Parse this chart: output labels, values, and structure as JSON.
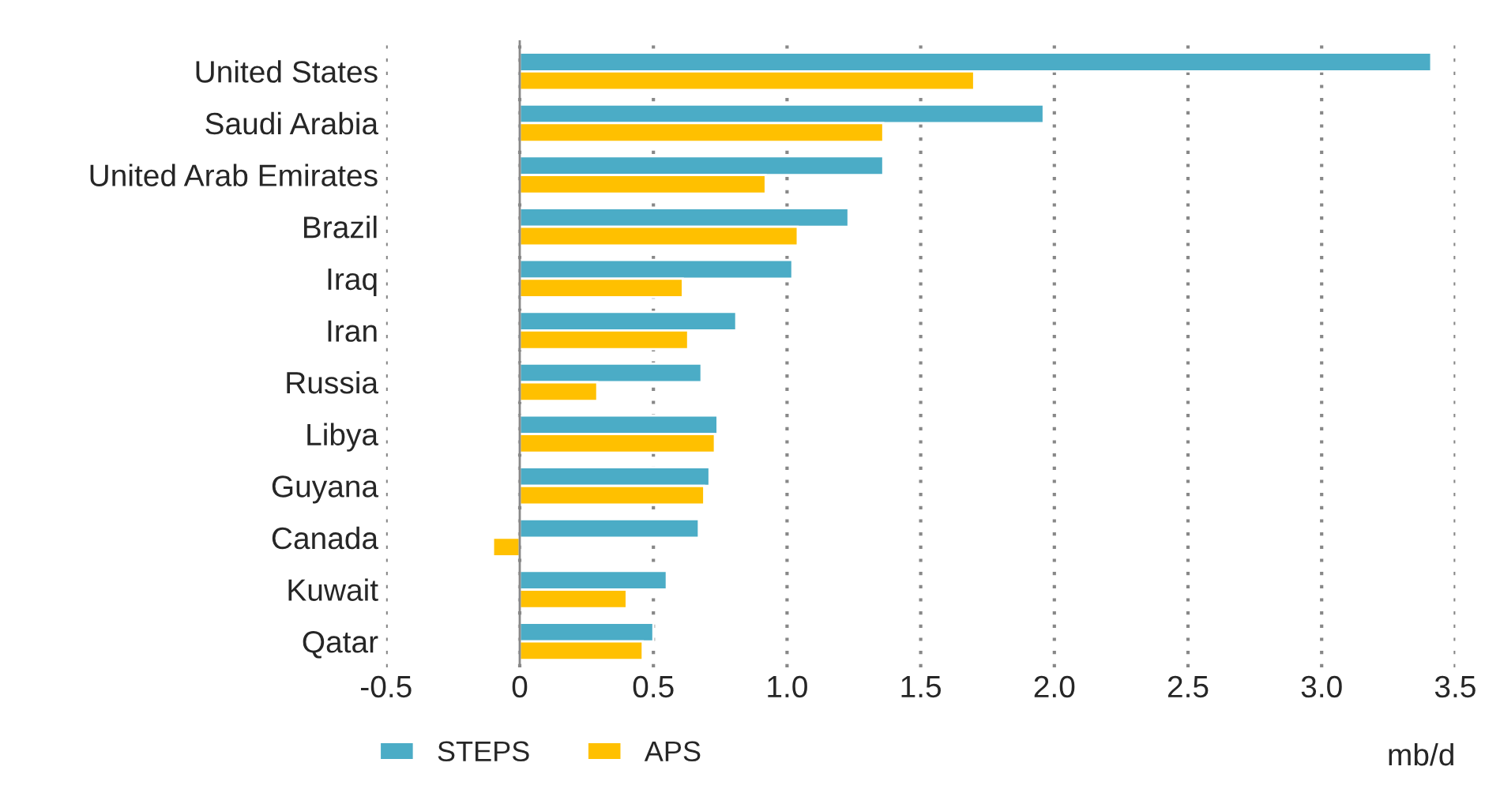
{
  "chart_data": {
    "type": "bar",
    "orientation": "horizontal",
    "categories": [
      "United States",
      "Saudi Arabia",
      "United Arab Emirates",
      "Brazil",
      "Iraq",
      "Iran",
      "Russia",
      "Libya",
      "Guyana",
      "Canada",
      "Kuwait",
      "Qatar"
    ],
    "series": [
      {
        "name": "STEPS",
        "color": "#4bacc6",
        "values": [
          3.41,
          1.96,
          1.36,
          1.23,
          1.02,
          0.81,
          0.68,
          0.74,
          0.71,
          0.67,
          0.55,
          0.5
        ]
      },
      {
        "name": "APS",
        "color": "#ffc000",
        "values": [
          1.7,
          1.36,
          0.92,
          1.04,
          0.61,
          0.63,
          0.29,
          0.73,
          0.69,
          -0.1,
          0.4,
          0.46
        ]
      }
    ],
    "xlim": [
      -0.5,
      3.5
    ],
    "xticks": [
      {
        "value": -0.5,
        "label": "-0.5"
      },
      {
        "value": 0,
        "label": "0"
      },
      {
        "value": 0.5,
        "label": "0.5"
      },
      {
        "value": 1,
        "label": "1.0"
      },
      {
        "value": 1.5,
        "label": "1.5"
      },
      {
        "value": 2,
        "label": "2.0"
      },
      {
        "value": 2.5,
        "label": "2.5"
      },
      {
        "value": 3,
        "label": "3.0"
      },
      {
        "value": 3.5,
        "label": "3.5"
      }
    ],
    "xlabel": "mb/d",
    "grid": "x",
    "legend": "bottom left"
  }
}
